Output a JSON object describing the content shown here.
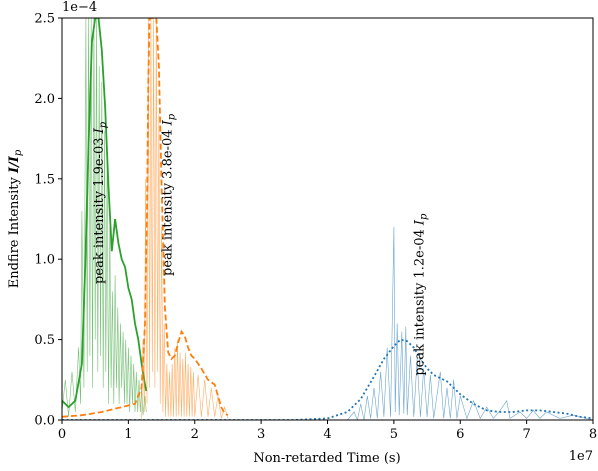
{
  "chart_data": {
    "type": "line",
    "title": "",
    "xlabel": "Non-retarded Time (s)",
    "ylabel_prefix": "Endfire Intensity ",
    "ylabel_math": "I/I",
    "ylabel_sub": "p",
    "x_offset_label": "1e7",
    "y_offset_label": "1e−4",
    "xlim": [
      0,
      8
    ],
    "ylim": [
      0,
      2.5
    ],
    "x_ticks": [
      0,
      1,
      2,
      3,
      4,
      5,
      6,
      7,
      8
    ],
    "y_ticks": [
      0.0,
      0.5,
      1.0,
      1.5,
      2.0,
      2.5
    ],
    "x_tick_labels": [
      "0",
      "1",
      "2",
      "3",
      "4",
      "5",
      "6",
      "7",
      "8"
    ],
    "y_tick_labels": [
      "0.0",
      "0.5",
      "1.0",
      "1.5",
      "2.0",
      "2.5"
    ],
    "grid": false,
    "series": [
      {
        "color": "#2ca02c",
        "style": "solid",
        "envelope": [
          [
            0,
            0.12
          ],
          [
            0.1,
            0.08
          ],
          [
            0.2,
            0.12
          ],
          [
            0.3,
            0.35
          ],
          [
            0.35,
            0.95
          ],
          [
            0.4,
            1.7
          ],
          [
            0.45,
            2.35
          ],
          [
            0.5,
            2.5
          ],
          [
            0.55,
            2.5
          ],
          [
            0.6,
            2.3
          ],
          [
            0.65,
            1.95
          ],
          [
            0.7,
            1.45
          ],
          [
            0.75,
            1.05
          ],
          [
            0.8,
            1.25
          ],
          [
            0.85,
            1.1
          ],
          [
            0.9,
            1.0
          ],
          [
            0.95,
            0.95
          ],
          [
            1.0,
            0.82
          ],
          [
            1.05,
            0.75
          ],
          [
            1.1,
            0.6
          ],
          [
            1.15,
            0.5
          ],
          [
            1.2,
            0.35
          ],
          [
            1.25,
            0.22
          ],
          [
            1.27,
            0.18
          ]
        ],
        "fast": [
          [
            0,
            0.05
          ],
          [
            0.05,
            0.25
          ],
          [
            0.1,
            0.02
          ],
          [
            0.15,
            0.3
          ],
          [
            0.2,
            0.05
          ],
          [
            0.25,
            0.45
          ],
          [
            0.28,
            0.1
          ],
          [
            0.3,
            1.3
          ],
          [
            0.33,
            0.2
          ],
          [
            0.36,
            2.5
          ],
          [
            0.38,
            0.3
          ],
          [
            0.4,
            2.5
          ],
          [
            0.42,
            0.4
          ],
          [
            0.44,
            2.5
          ],
          [
            0.46,
            0.2
          ],
          [
            0.48,
            2.5
          ],
          [
            0.5,
            0.5
          ],
          [
            0.52,
            2.5
          ],
          [
            0.54,
            0.3
          ],
          [
            0.56,
            2.2
          ],
          [
            0.58,
            0.4
          ],
          [
            0.6,
            2.1
          ],
          [
            0.62,
            0.2
          ],
          [
            0.64,
            1.8
          ],
          [
            0.66,
            0.3
          ],
          [
            0.68,
            1.6
          ],
          [
            0.7,
            0.1
          ],
          [
            0.72,
            1.2
          ],
          [
            0.74,
            0.2
          ],
          [
            0.76,
            0.8
          ],
          [
            0.78,
            0.1
          ],
          [
            0.8,
            0.9
          ],
          [
            0.82,
            0.2
          ],
          [
            0.84,
            0.7
          ],
          [
            0.86,
            0.1
          ],
          [
            0.88,
            0.6
          ],
          [
            0.9,
            0.2
          ],
          [
            0.92,
            0.55
          ],
          [
            0.94,
            0.1
          ],
          [
            0.96,
            0.5
          ],
          [
            0.98,
            0.1
          ],
          [
            1.0,
            0.45
          ],
          [
            1.02,
            0.05
          ],
          [
            1.04,
            0.4
          ],
          [
            1.06,
            0.1
          ],
          [
            1.08,
            0.35
          ],
          [
            1.1,
            0.05
          ],
          [
            1.12,
            0.3
          ],
          [
            1.14,
            0.05
          ],
          [
            1.16,
            0.25
          ],
          [
            1.18,
            0.05
          ],
          [
            1.2,
            0.2
          ],
          [
            1.22,
            0.03
          ],
          [
            1.25,
            0.15
          ],
          [
            1.27,
            0.05
          ]
        ],
        "annotation": {
          "prefix": "peak intensity 1.9e-03 ",
          "math": "I",
          "sub": "p",
          "anchor_x": 0.62,
          "anchor_y": 1.35
        }
      },
      {
        "color": "#ff7f0e",
        "style": "dashed",
        "envelope": [
          [
            0,
            0.02
          ],
          [
            0.3,
            0.03
          ],
          [
            0.6,
            0.05
          ],
          [
            0.9,
            0.08
          ],
          [
            1.1,
            0.1
          ],
          [
            1.2,
            0.2
          ],
          [
            1.25,
            0.6
          ],
          [
            1.28,
            1.3
          ],
          [
            1.3,
            2.1
          ],
          [
            1.32,
            2.5
          ],
          [
            1.38,
            2.5
          ],
          [
            1.42,
            2.5
          ],
          [
            1.46,
            2.2
          ],
          [
            1.5,
            1.45
          ],
          [
            1.55,
            0.7
          ],
          [
            1.6,
            0.42
          ],
          [
            1.65,
            0.38
          ],
          [
            1.7,
            0.4
          ],
          [
            1.75,
            0.48
          ],
          [
            1.8,
            0.55
          ],
          [
            1.85,
            0.52
          ],
          [
            1.9,
            0.45
          ],
          [
            1.95,
            0.4
          ],
          [
            2.0,
            0.38
          ],
          [
            2.1,
            0.32
          ],
          [
            2.2,
            0.25
          ],
          [
            2.3,
            0.22
          ],
          [
            2.35,
            0.15
          ],
          [
            2.4,
            0.08
          ],
          [
            2.45,
            0.04
          ],
          [
            2.5,
            0.03
          ]
        ],
        "fast": [
          [
            1.2,
            0.0
          ],
          [
            1.22,
            0.5
          ],
          [
            1.24,
            0.05
          ],
          [
            1.26,
            1.5
          ],
          [
            1.28,
            0.1
          ],
          [
            1.3,
            2.5
          ],
          [
            1.32,
            0.2
          ],
          [
            1.34,
            2.5
          ],
          [
            1.36,
            0.3
          ],
          [
            1.38,
            2.5
          ],
          [
            1.4,
            0.2
          ],
          [
            1.42,
            2.5
          ],
          [
            1.44,
            0.3
          ],
          [
            1.46,
            1.9
          ],
          [
            1.48,
            0.1
          ],
          [
            1.5,
            1.2
          ],
          [
            1.52,
            0.05
          ],
          [
            1.54,
            0.6
          ],
          [
            1.56,
            0.02
          ],
          [
            1.58,
            0.35
          ],
          [
            1.6,
            0.02
          ],
          [
            1.62,
            0.3
          ],
          [
            1.64,
            0.02
          ],
          [
            1.66,
            0.35
          ],
          [
            1.68,
            0.02
          ],
          [
            1.7,
            0.45
          ],
          [
            1.72,
            0.02
          ],
          [
            1.74,
            0.5
          ],
          [
            1.76,
            0.03
          ],
          [
            1.78,
            0.42
          ],
          [
            1.8,
            0.02
          ],
          [
            1.82,
            0.38
          ],
          [
            1.84,
            0.02
          ],
          [
            1.86,
            0.42
          ],
          [
            1.88,
            0.02
          ],
          [
            1.9,
            0.35
          ],
          [
            1.92,
            0.02
          ],
          [
            1.94,
            0.33
          ],
          [
            1.96,
            0.02
          ],
          [
            1.98,
            0.3
          ],
          [
            2.0,
            0.02
          ],
          [
            2.05,
            0.28
          ],
          [
            2.1,
            0.02
          ],
          [
            2.15,
            0.25
          ],
          [
            2.2,
            0.02
          ],
          [
            2.25,
            0.2
          ],
          [
            2.3,
            0.02
          ],
          [
            2.35,
            0.15
          ],
          [
            2.4,
            0.01
          ],
          [
            2.45,
            0.08
          ],
          [
            2.5,
            0.01
          ]
        ],
        "annotation": {
          "prefix": "peak intensity 3.8e-04 ",
          "math": "I",
          "sub": "p",
          "anchor_x": 1.65,
          "anchor_y": 1.4
        }
      },
      {
        "color": "#1f77b4",
        "style": "dotted",
        "envelope": [
          [
            0,
            0.0
          ],
          [
            1,
            0.0
          ],
          [
            2,
            0.0
          ],
          [
            3,
            0.0
          ],
          [
            3.5,
            0.0
          ],
          [
            4.0,
            0.01
          ],
          [
            4.3,
            0.05
          ],
          [
            4.5,
            0.13
          ],
          [
            4.7,
            0.27
          ],
          [
            4.85,
            0.38
          ],
          [
            5.0,
            0.46
          ],
          [
            5.1,
            0.5
          ],
          [
            5.2,
            0.49
          ],
          [
            5.3,
            0.45
          ],
          [
            5.4,
            0.38
          ],
          [
            5.5,
            0.32
          ],
          [
            5.6,
            0.28
          ],
          [
            5.7,
            0.26
          ],
          [
            5.8,
            0.24
          ],
          [
            5.9,
            0.2
          ],
          [
            6.0,
            0.16
          ],
          [
            6.2,
            0.1
          ],
          [
            6.4,
            0.06
          ],
          [
            6.6,
            0.05
          ],
          [
            6.8,
            0.05
          ],
          [
            7.0,
            0.06
          ],
          [
            7.2,
            0.06
          ],
          [
            7.4,
            0.05
          ],
          [
            7.6,
            0.04
          ],
          [
            7.8,
            0.02
          ],
          [
            8.0,
            0.01
          ]
        ],
        "fast": [
          [
            4.3,
            0.0
          ],
          [
            4.4,
            0.05
          ],
          [
            4.45,
            0.0
          ],
          [
            4.5,
            0.1
          ],
          [
            4.55,
            0.0
          ],
          [
            4.6,
            0.15
          ],
          [
            4.65,
            0.01
          ],
          [
            4.7,
            0.2
          ],
          [
            4.75,
            0.01
          ],
          [
            4.8,
            0.3
          ],
          [
            4.85,
            0.02
          ],
          [
            4.9,
            0.45
          ],
          [
            4.95,
            0.02
          ],
          [
            5.0,
            1.2
          ],
          [
            5.02,
            0.05
          ],
          [
            5.05,
            0.6
          ],
          [
            5.08,
            0.03
          ],
          [
            5.12,
            0.55
          ],
          [
            5.15,
            0.04
          ],
          [
            5.18,
            0.58
          ],
          [
            5.2,
            0.03
          ],
          [
            5.25,
            0.4
          ],
          [
            5.3,
            0.02
          ],
          [
            5.35,
            0.38
          ],
          [
            5.4,
            0.02
          ],
          [
            5.45,
            0.32
          ],
          [
            5.5,
            0.02
          ],
          [
            5.55,
            0.28
          ],
          [
            5.6,
            0.01
          ],
          [
            5.7,
            0.3
          ],
          [
            5.75,
            0.01
          ],
          [
            5.8,
            0.2
          ],
          [
            5.85,
            0.01
          ],
          [
            5.9,
            0.25
          ],
          [
            5.95,
            0.01
          ],
          [
            6.0,
            0.15
          ],
          [
            6.1,
            0.01
          ],
          [
            6.2,
            0.12
          ],
          [
            6.3,
            0.01
          ],
          [
            6.4,
            0.08
          ],
          [
            6.5,
            0.01
          ],
          [
            6.6,
            0.06
          ],
          [
            6.7,
            0.12
          ],
          [
            6.75,
            0.01
          ],
          [
            6.9,
            0.05
          ],
          [
            7.0,
            0.01
          ],
          [
            7.1,
            0.06
          ],
          [
            7.2,
            0.01
          ],
          [
            7.3,
            0.05
          ],
          [
            7.5,
            0.01
          ],
          [
            7.7,
            0.03
          ],
          [
            8.0,
            0.0
          ]
        ],
        "annotation": {
          "prefix": "peak intensity 1.2e-04 ",
          "math": "I",
          "sub": "p",
          "anchor_x": 5.45,
          "anchor_y": 0.78
        }
      }
    ]
  }
}
